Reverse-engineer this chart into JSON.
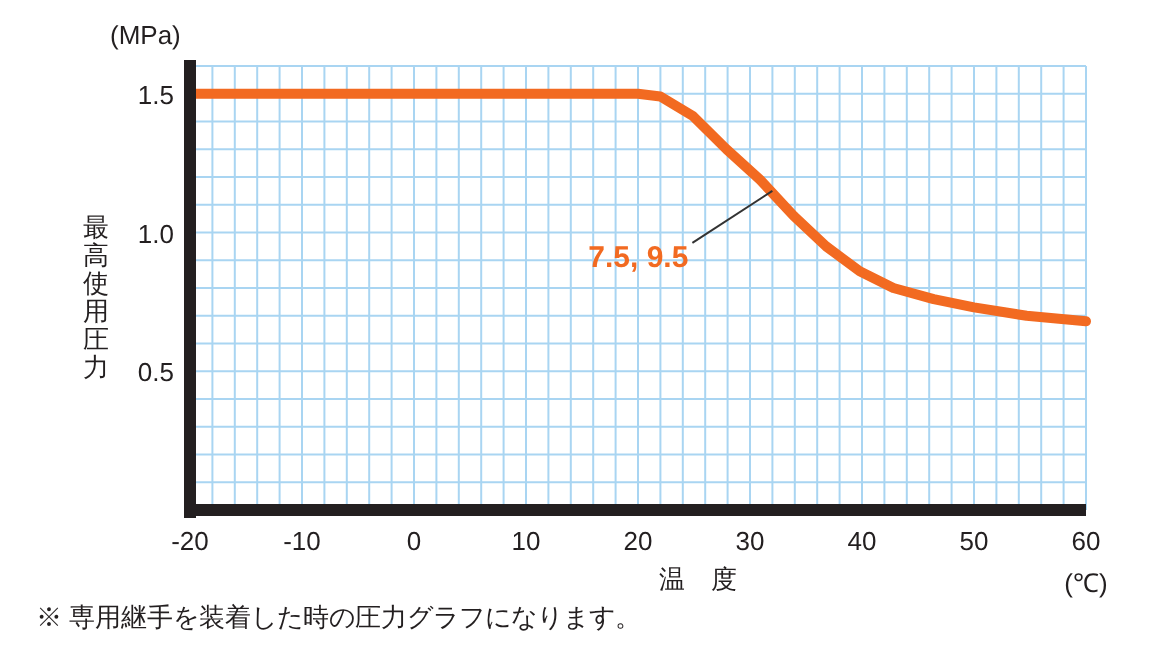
{
  "chart_data": {
    "type": "line",
    "ylabel": "最高使用圧力",
    "xlabel": "温　度",
    "x": [
      -20,
      -10,
      0,
      10,
      20,
      22,
      24.9,
      27.9,
      30.9,
      33.9,
      36.8,
      39.8,
      42.8,
      46.4,
      50,
      54.7,
      60
    ],
    "series": [
      {
        "color": "#f26a21",
        "values": [
          1.5,
          1.5,
          1.5,
          1.5,
          1.5,
          1.49,
          1.42,
          1.3,
          1.19,
          1.06,
          0.95,
          0.86,
          0.8,
          0.76,
          0.73,
          0.7,
          0.68
        ]
      }
    ],
    "xlim": [
      -20,
      60
    ],
    "xticks": [
      -20,
      -10,
      0,
      10,
      20,
      30,
      40,
      50,
      60
    ],
    "ylim": [
      0,
      1.6
    ],
    "yticks": [
      {
        "value": 0.5,
        "label": "0.5"
      },
      {
        "value": 1,
        "label": "1.0"
      },
      {
        "value": 1.5,
        "label": "1.5"
      }
    ],
    "grid": true,
    "marker": "none",
    "line_style": "solid",
    "annotations": [
      {
        "text": "7.5, 9.5",
        "x": 32,
        "y": 1.15
      },
      "(MPa)",
      "(℃)",
      "※ 専用継手を装着した時の圧力グラフになります。"
    ]
  }
}
